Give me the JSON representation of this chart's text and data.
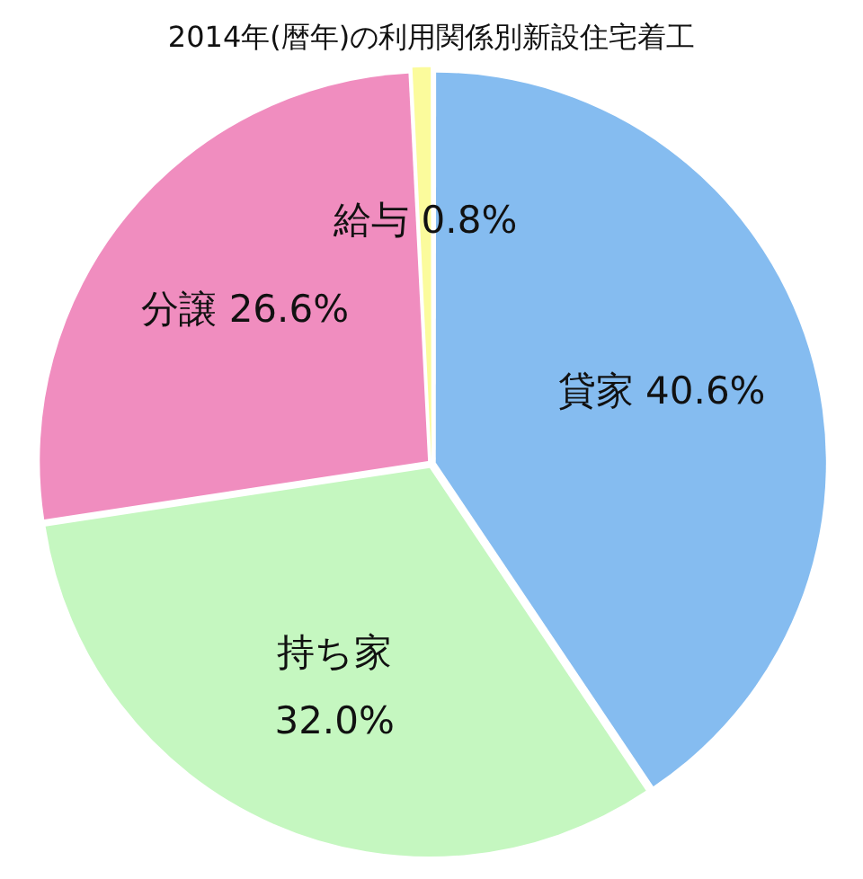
{
  "chart_data": {
    "type": "pie",
    "title": "2014年(暦年)の利用関係別新設住宅着工",
    "categories": [
      "貸家",
      "持ち家",
      "分譲",
      "給与"
    ],
    "values": [
      40.6,
      32.0,
      26.6,
      0.8
    ],
    "value_labels": [
      "40.6%",
      "32.0%",
      "26.6%",
      "0.8%"
    ],
    "colors": [
      "#85bcf0",
      "#c5f7c0",
      "#f08dbf",
      "#fbfb9c"
    ],
    "legend": false
  }
}
